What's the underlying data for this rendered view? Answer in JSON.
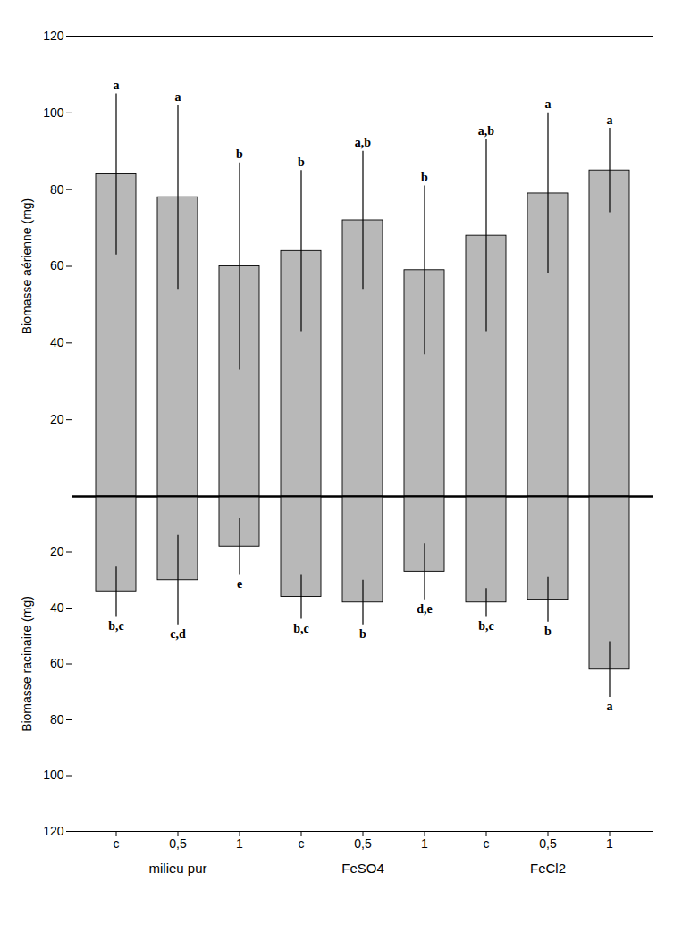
{
  "chart_data": [
    {
      "type": "bar",
      "ylabel": "Biomasse aérienne (mg)",
      "categories": [
        "c",
        "0,5",
        "1",
        "c",
        "0,5",
        "1",
        "c",
        "0,5",
        "1"
      ],
      "values": [
        84,
        78,
        60,
        64,
        72,
        59,
        68,
        79,
        85
      ],
      "errors": [
        21,
        24,
        27,
        21,
        18,
        22,
        25,
        21,
        11
      ],
      "annotations": [
        "a",
        "a",
        "b",
        "b",
        "a,b",
        "b",
        "a,b",
        "a",
        "a"
      ],
      "color": "#b8b8b8",
      "ylim": [
        0,
        120
      ],
      "yticks": [
        20,
        40,
        60,
        80,
        100,
        120
      ],
      "tick_labels": "y",
      "grid": false
    },
    {
      "type": "bar",
      "ylabel": "Biomasse racinaire (mg)",
      "categories": [
        "c",
        "0,5",
        "1",
        "c",
        "0,5",
        "1",
        "c",
        "0,5",
        "1"
      ],
      "values": [
        34,
        30,
        18,
        36,
        38,
        27,
        38,
        37,
        62
      ],
      "errors": [
        9,
        16,
        10,
        8,
        8,
        10,
        5,
        8,
        10
      ],
      "annotations": [
        "b,c",
        "c,d",
        "e",
        "b,c",
        "b",
        "d,e",
        "b,c",
        "b",
        "a"
      ],
      "group_labels": [
        "milieu pur",
        "FeSO4",
        "FeCl2"
      ],
      "color": "#b8b8b8",
      "ylim": [
        120,
        0
      ],
      "yticks": [
        20,
        40,
        60,
        80,
        100,
        120
      ],
      "grid": false
    }
  ]
}
